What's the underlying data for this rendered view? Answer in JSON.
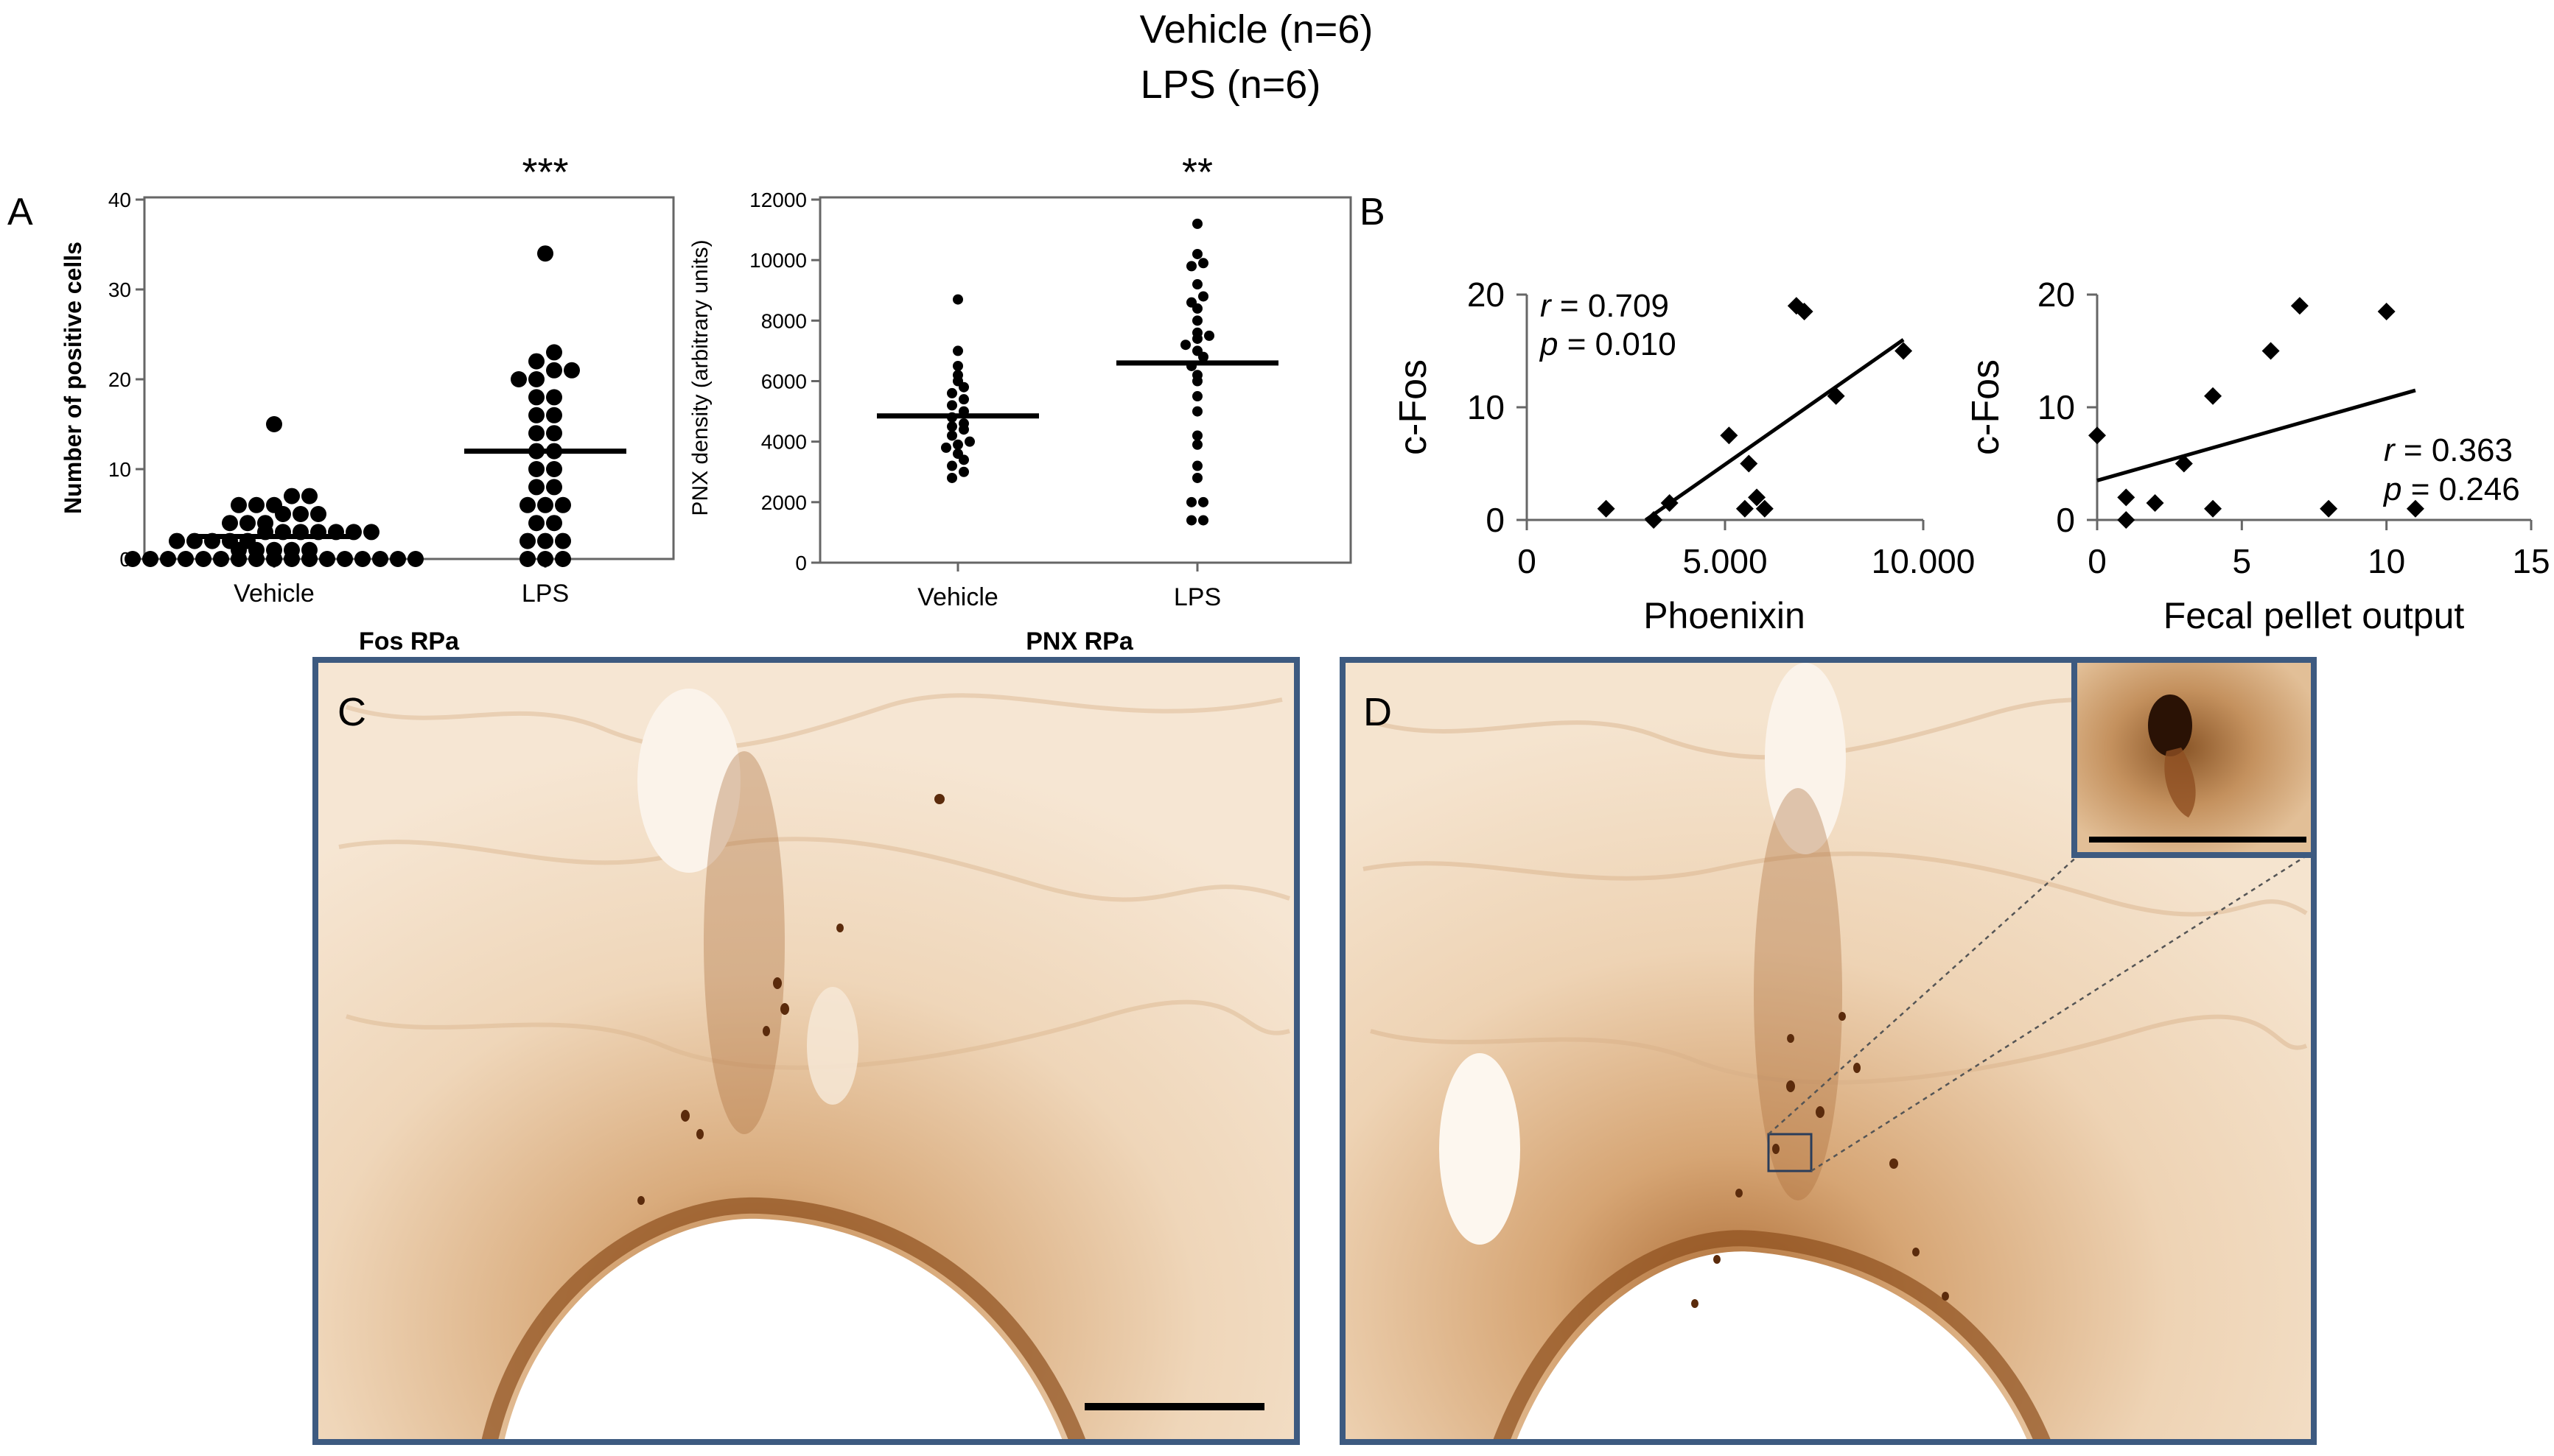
{
  "header": {
    "vehicle_label": "Vehicle (n=6)",
    "lps_label": "LPS (n=6)"
  },
  "panel_letters": {
    "a": "A",
    "b": "B",
    "c": "C",
    "d": "D"
  },
  "colors": {
    "tissue_bg": "#f3e1cc",
    "stain_mid": "#c89260",
    "stain_dark": "#7a3e12",
    "frame": "#3d5a80"
  },
  "chart_data": [
    {
      "id": "fos-rpa",
      "type": "scatter",
      "subtitle": "Fos RPa",
      "ylabel": "Number of positive cells",
      "categories": [
        "Vehicle",
        "LPS"
      ],
      "ylim": [
        0,
        40
      ],
      "yticks": [
        0,
        10,
        20,
        30,
        40
      ],
      "significance": "***",
      "marker": "large-dot",
      "series": [
        {
          "name": "Vehicle",
          "mean": 2.5,
          "values": [
            0,
            0,
            0,
            0,
            0,
            0,
            0,
            0,
            0,
            0,
            0,
            0,
            0,
            0,
            0,
            0,
            0,
            1,
            1,
            1,
            1,
            1,
            2,
            2,
            2,
            2,
            2,
            3,
            3,
            3,
            3,
            3,
            3,
            3,
            4,
            4,
            4,
            5,
            5,
            5,
            6,
            6,
            6,
            7,
            7,
            15
          ]
        },
        {
          "name": "LPS",
          "mean": 12,
          "values": [
            0,
            0,
            0,
            2,
            2,
            2,
            4,
            4,
            6,
            6,
            6,
            8,
            8,
            10,
            10,
            12,
            12,
            14,
            14,
            16,
            16,
            18,
            18,
            20,
            20,
            21,
            21,
            22,
            23,
            34
          ]
        }
      ]
    },
    {
      "id": "pnx-rpa",
      "type": "scatter",
      "subtitle": "PNX RPa",
      "ylabel": "PNX density (arbitrary units)",
      "categories": [
        "Vehicle",
        "LPS"
      ],
      "ylim": [
        0,
        12000
      ],
      "yticks": [
        0,
        2000,
        4000,
        6000,
        8000,
        10000,
        12000
      ],
      "significance": "**",
      "marker": "small-dot",
      "series": [
        {
          "name": "Vehicle",
          "mean": 4850,
          "values": [
            2800,
            3000,
            3200,
            3400,
            3600,
            3800,
            3900,
            4000,
            4200,
            4400,
            4500,
            4600,
            4800,
            5000,
            5200,
            5400,
            5600,
            5800,
            6000,
            6200,
            6500,
            7000,
            8700
          ]
        },
        {
          "name": "LPS",
          "mean": 6600,
          "values": [
            1400,
            1400,
            2000,
            2000,
            2800,
            3200,
            3900,
            4200,
            5000,
            5500,
            6000,
            6200,
            6500,
            6800,
            7000,
            7200,
            7400,
            7500,
            7600,
            8000,
            8400,
            8600,
            8800,
            9200,
            9800,
            9900,
            10200,
            11200
          ]
        }
      ]
    },
    {
      "id": "cfos-vs-phoenixin",
      "type": "scatter",
      "xlabel": "Phoenixin",
      "ylabel": "c-Fos",
      "xlim": [
        0,
        10000
      ],
      "ylim": [
        0,
        20
      ],
      "xticks": [
        0,
        5000,
        10000
      ],
      "xtick_labels": [
        "0",
        "5.000",
        "10.000"
      ],
      "yticks": [
        0,
        10,
        20
      ],
      "stats": {
        "r": "0.709",
        "p": "0.010"
      },
      "fit": {
        "x": [
          3000,
          9500
        ],
        "y": [
          0,
          16
        ]
      },
      "points": [
        {
          "x": 2000,
          "y": 1
        },
        {
          "x": 3200,
          "y": 0
        },
        {
          "x": 3600,
          "y": 1.5
        },
        {
          "x": 5100,
          "y": 7.5
        },
        {
          "x": 5500,
          "y": 1
        },
        {
          "x": 5600,
          "y": 5
        },
        {
          "x": 5800,
          "y": 2
        },
        {
          "x": 6000,
          "y": 1
        },
        {
          "x": 6800,
          "y": 19
        },
        {
          "x": 7000,
          "y": 18.5
        },
        {
          "x": 7800,
          "y": 11
        },
        {
          "x": 9500,
          "y": 15
        }
      ]
    },
    {
      "id": "cfos-vs-fecal",
      "type": "scatter",
      "xlabel": "Fecal pellet output",
      "ylabel": "c-Fos",
      "xlim": [
        0,
        15
      ],
      "ylim": [
        0,
        20
      ],
      "xticks": [
        0,
        5,
        10,
        15
      ],
      "yticks": [
        0,
        10,
        20
      ],
      "stats": {
        "r": "0.363",
        "p": "0.246"
      },
      "fit": {
        "x": [
          0,
          11
        ],
        "y": [
          3.5,
          11.5
        ]
      },
      "points": [
        {
          "x": 0,
          "y": 7.5
        },
        {
          "x": 1,
          "y": 2
        },
        {
          "x": 1,
          "y": 0
        },
        {
          "x": 2,
          "y": 1.5
        },
        {
          "x": 3,
          "y": 5
        },
        {
          "x": 4,
          "y": 11
        },
        {
          "x": 4,
          "y": 1
        },
        {
          "x": 6,
          "y": 15
        },
        {
          "x": 7,
          "y": 19
        },
        {
          "x": 8,
          "y": 1
        },
        {
          "x": 10,
          "y": 18.5
        },
        {
          "x": 11,
          "y": 1
        }
      ]
    }
  ]
}
